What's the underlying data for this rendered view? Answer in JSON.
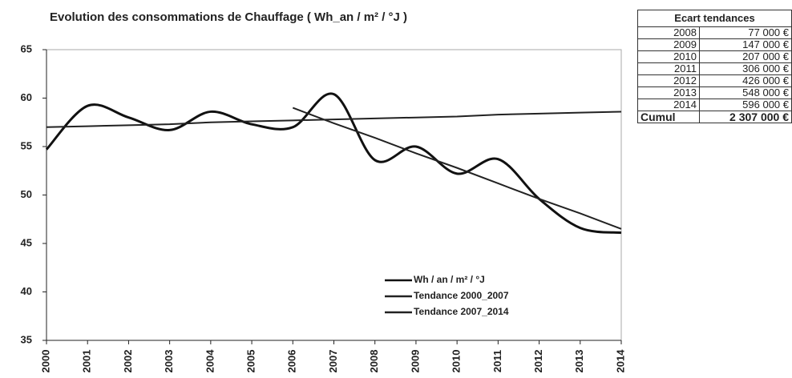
{
  "chart_data": {
    "type": "line",
    "title": "Evolution des consommations de Chauffage ( Wh_an / m² / °J )",
    "x": [
      2000,
      2001,
      2002,
      2003,
      2004,
      2005,
      2006,
      2007,
      2008,
      2009,
      2010,
      2011,
      2012,
      2013,
      2014
    ],
    "xlim": [
      2000,
      2014
    ],
    "xticks": [
      2000,
      2001,
      2002,
      2003,
      2004,
      2005,
      2006,
      2007,
      2008,
      2009,
      2010,
      2011,
      2012,
      2013,
      2014
    ],
    "ylim": [
      35,
      65
    ],
    "yticks": [
      35,
      40,
      45,
      50,
      55,
      60,
      65
    ],
    "legend": "lower center",
    "series": [
      {
        "name": "Wh / an / m² / °J",
        "color": "#111111",
        "smooth": true,
        "values": [
          54.7,
          59.2,
          58.0,
          56.7,
          58.6,
          57.3,
          57.0,
          60.4,
          53.6,
          55.0,
          52.2,
          53.7,
          49.6,
          46.6,
          46.1
        ]
      },
      {
        "name": "Tendance 2000_2007",
        "color": "#222222",
        "smooth": false,
        "values": [
          57.0,
          57.1,
          57.2,
          57.3,
          57.5,
          57.6,
          57.7,
          57.8,
          57.9,
          58.0,
          58.1,
          58.3,
          58.4,
          58.5,
          58.6
        ]
      },
      {
        "name": "Tendance 2007_2014",
        "color": "#222222",
        "smooth": false,
        "values": [
          null,
          null,
          null,
          null,
          null,
          null,
          59.0,
          57.4,
          55.9,
          54.3,
          52.8,
          51.2,
          49.6,
          48.1,
          46.5
        ]
      }
    ]
  },
  "table": {
    "header": "Ecart tendances",
    "rows": [
      [
        "2008",
        "77 000 €"
      ],
      [
        "2009",
        "147 000 €"
      ],
      [
        "2010",
        "207 000 €"
      ],
      [
        "2011",
        "306 000 €"
      ],
      [
        "2012",
        "426 000 €"
      ],
      [
        "2013",
        "548 000 €"
      ],
      [
        "2014",
        "596 000 €"
      ],
      [
        "Cumul",
        "2 307 000 €"
      ]
    ]
  }
}
